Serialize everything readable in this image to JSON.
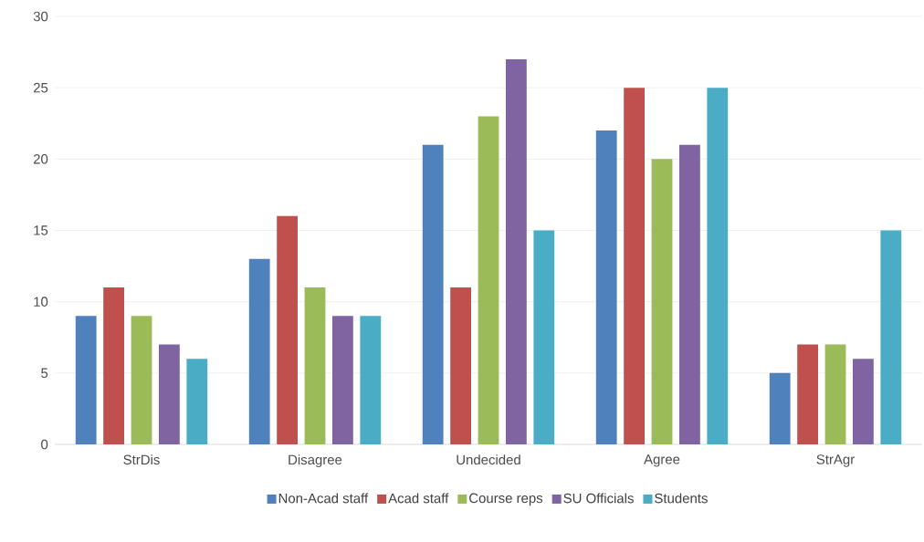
{
  "chart_data": {
    "type": "bar",
    "categories": [
      "StrDis",
      "Disagree",
      "Undecided",
      "Agree",
      "StrAgr"
    ],
    "series": [
      {
        "name": "Non-Acad staff",
        "color": "#4f81bd",
        "values": [
          9,
          13,
          21,
          22,
          5
        ]
      },
      {
        "name": "Acad staff",
        "color": "#c0504d",
        "values": [
          11,
          16,
          11,
          25,
          7
        ]
      },
      {
        "name": "Course reps",
        "color": "#9bbb59",
        "values": [
          9,
          11,
          23,
          20,
          7
        ]
      },
      {
        "name": "SU Officials",
        "color": "#8064a2",
        "values": [
          7,
          9,
          27,
          21,
          6
        ]
      },
      {
        "name": "Students",
        "color": "#4bacc6",
        "values": [
          6,
          9,
          15,
          25,
          15
        ]
      }
    ],
    "ylim": [
      0,
      30
    ],
    "yticks": [
      0,
      5,
      10,
      15,
      20,
      25,
      30
    ],
    "grid": "y",
    "legend": "bottom"
  }
}
